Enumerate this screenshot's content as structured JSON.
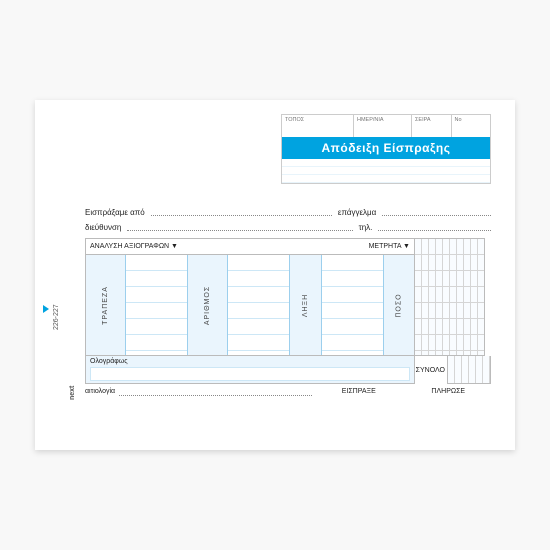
{
  "side": {
    "code": "226-227",
    "brand": "next"
  },
  "header": {
    "cells": {
      "place": "ΤΟΠΟΣ",
      "date": "ΗΜΕΡ/ΝΙΑ",
      "series": "ΣΕΙΡΑ",
      "no": "Νο"
    },
    "title": "Απόδειξη Είσπραξης"
  },
  "details": {
    "from": "Εισπράξαμε από",
    "profession": "επάγγελμα",
    "address": "διεύθυνση",
    "phone": "τηλ."
  },
  "table": {
    "header_left": "ΑΝΑΛΥΣΗ  ΑΞΙΟΓΡΑΦΩΝ ▼",
    "header_right": "ΜΕΤΡΗΤΑ ▼",
    "cols": {
      "bank": "ΤΡΑΠΕΖΑ",
      "number": "ΑΡΙΘΜΟΣ",
      "expiry": "ΛΗΞΗ",
      "amount": "ΠΟΣΟ"
    }
  },
  "footer": {
    "in_words": "Ολογράφως",
    "total": "ΣΥΝΟΛΟ",
    "received": "ΕΙΣΠΡΑΞΕ",
    "paid": "ΠΛΗΡΩΣΕ",
    "reason": "αιτιολογία"
  },
  "colors": {
    "accent": "#00a3e0",
    "light": "#eaf5fd",
    "border": "#bbb"
  }
}
